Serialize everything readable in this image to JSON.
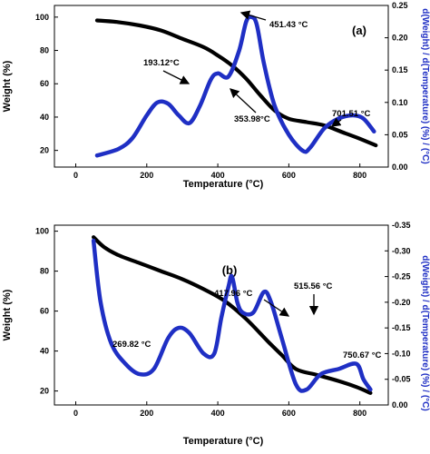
{
  "chart_data": [
    {
      "panel": "(a)",
      "type": "line",
      "xlabel": "Temperature (°C)",
      "ylabel": "Weight (%)",
      "y2label": "d(Weight) / d(Temperature) (%) / (°C)",
      "xlim": [
        -60,
        880
      ],
      "ylim": [
        10,
        107
      ],
      "y2lim": [
        0,
        0.25
      ],
      "x_ticks": [
        0,
        200,
        400,
        600,
        800
      ],
      "y_ticks": [
        20,
        40,
        60,
        80,
        100
      ],
      "y2_ticks": [
        "0.00",
        "0.05",
        "0.10",
        "0.15",
        "0.20",
        "0.25"
      ],
      "y2_tick_values": [
        0,
        0.05,
        0.1,
        0.15,
        0.2,
        0.25
      ],
      "series": [
        {
          "color": "#000000",
          "axis": "left",
          "x": [
            60,
            120,
            180,
            240,
            300,
            360,
            400,
            440,
            480,
            520,
            560,
            600,
            650,
            700,
            750,
            800,
            845
          ],
          "y": [
            98,
            97,
            95,
            92,
            87,
            82,
            77,
            71,
            63,
            53,
            44,
            39,
            37,
            35,
            31,
            27,
            23
          ]
        },
        {
          "color": "#1f2fc4",
          "axis": "right",
          "x": [
            60,
            120,
            160,
            200,
            230,
            260,
            290,
            320,
            350,
            380,
            400,
            430,
            460,
            480,
            495,
            510,
            530,
            560,
            600,
            640,
            660,
            700,
            740,
            780,
            810,
            840
          ],
          "y": [
            0.018,
            0.028,
            0.045,
            0.08,
            0.1,
            0.098,
            0.08,
            0.068,
            0.095,
            0.135,
            0.145,
            0.14,
            0.18,
            0.225,
            0.232,
            0.22,
            0.16,
            0.095,
            0.05,
            0.025,
            0.03,
            0.06,
            0.075,
            0.08,
            0.075,
            0.055
          ]
        }
      ],
      "annotations": [
        "193.12°C",
        "353.98°C",
        "451.43 °C",
        "701.51 °C"
      ]
    },
    {
      "panel": "(b)",
      "type": "line",
      "xlabel": "Temperature (°C)",
      "ylabel": "Weight (%)",
      "y2label": "d(Weight) / d(Temperature) (%) / (°C)",
      "xlim": [
        -60,
        880
      ],
      "ylim": [
        13,
        103
      ],
      "y2lim": [
        0,
        0.35
      ],
      "x_ticks": [
        0,
        200,
        400,
        600,
        800
      ],
      "y_ticks": [
        20,
        40,
        60,
        80,
        100
      ],
      "y2_ticks": [
        "0.00",
        "-0.05",
        "-0.10",
        "-0.15",
        "-0.20",
        "-0.25",
        "-0.30",
        "-0.35"
      ],
      "y2_tick_values": [
        0,
        0.05,
        0.1,
        0.15,
        0.2,
        0.25,
        0.3,
        0.35
      ],
      "series": [
        {
          "color": "#000000",
          "axis": "left",
          "x": [
            50,
            80,
            120,
            180,
            240,
            300,
            360,
            420,
            480,
            540,
            580,
            620,
            680,
            740,
            790,
            830
          ],
          "y": [
            97,
            92,
            88,
            84,
            80,
            76,
            71,
            65,
            56,
            45,
            38,
            31,
            28,
            25,
            22,
            19
          ]
        },
        {
          "color": "#1f2fc4",
          "axis": "right",
          "x": [
            50,
            70,
            100,
            140,
            180,
            220,
            260,
            290,
            320,
            360,
            390,
            410,
            430,
            440,
            455,
            470,
            500,
            530,
            550,
            580,
            620,
            650,
            690,
            740,
            790,
            810,
            830
          ],
          "y": [
            0.32,
            0.2,
            0.12,
            0.08,
            0.06,
            0.07,
            0.13,
            0.15,
            0.14,
            0.1,
            0.1,
            0.17,
            0.23,
            0.25,
            0.2,
            0.18,
            0.18,
            0.22,
            0.2,
            0.13,
            0.04,
            0.03,
            0.06,
            0.07,
            0.08,
            0.05,
            0.03
          ]
        }
      ],
      "annotations": [
        "269.82 °C",
        "417.96 °C",
        "515.56 °C",
        "750.67 °C"
      ]
    }
  ]
}
